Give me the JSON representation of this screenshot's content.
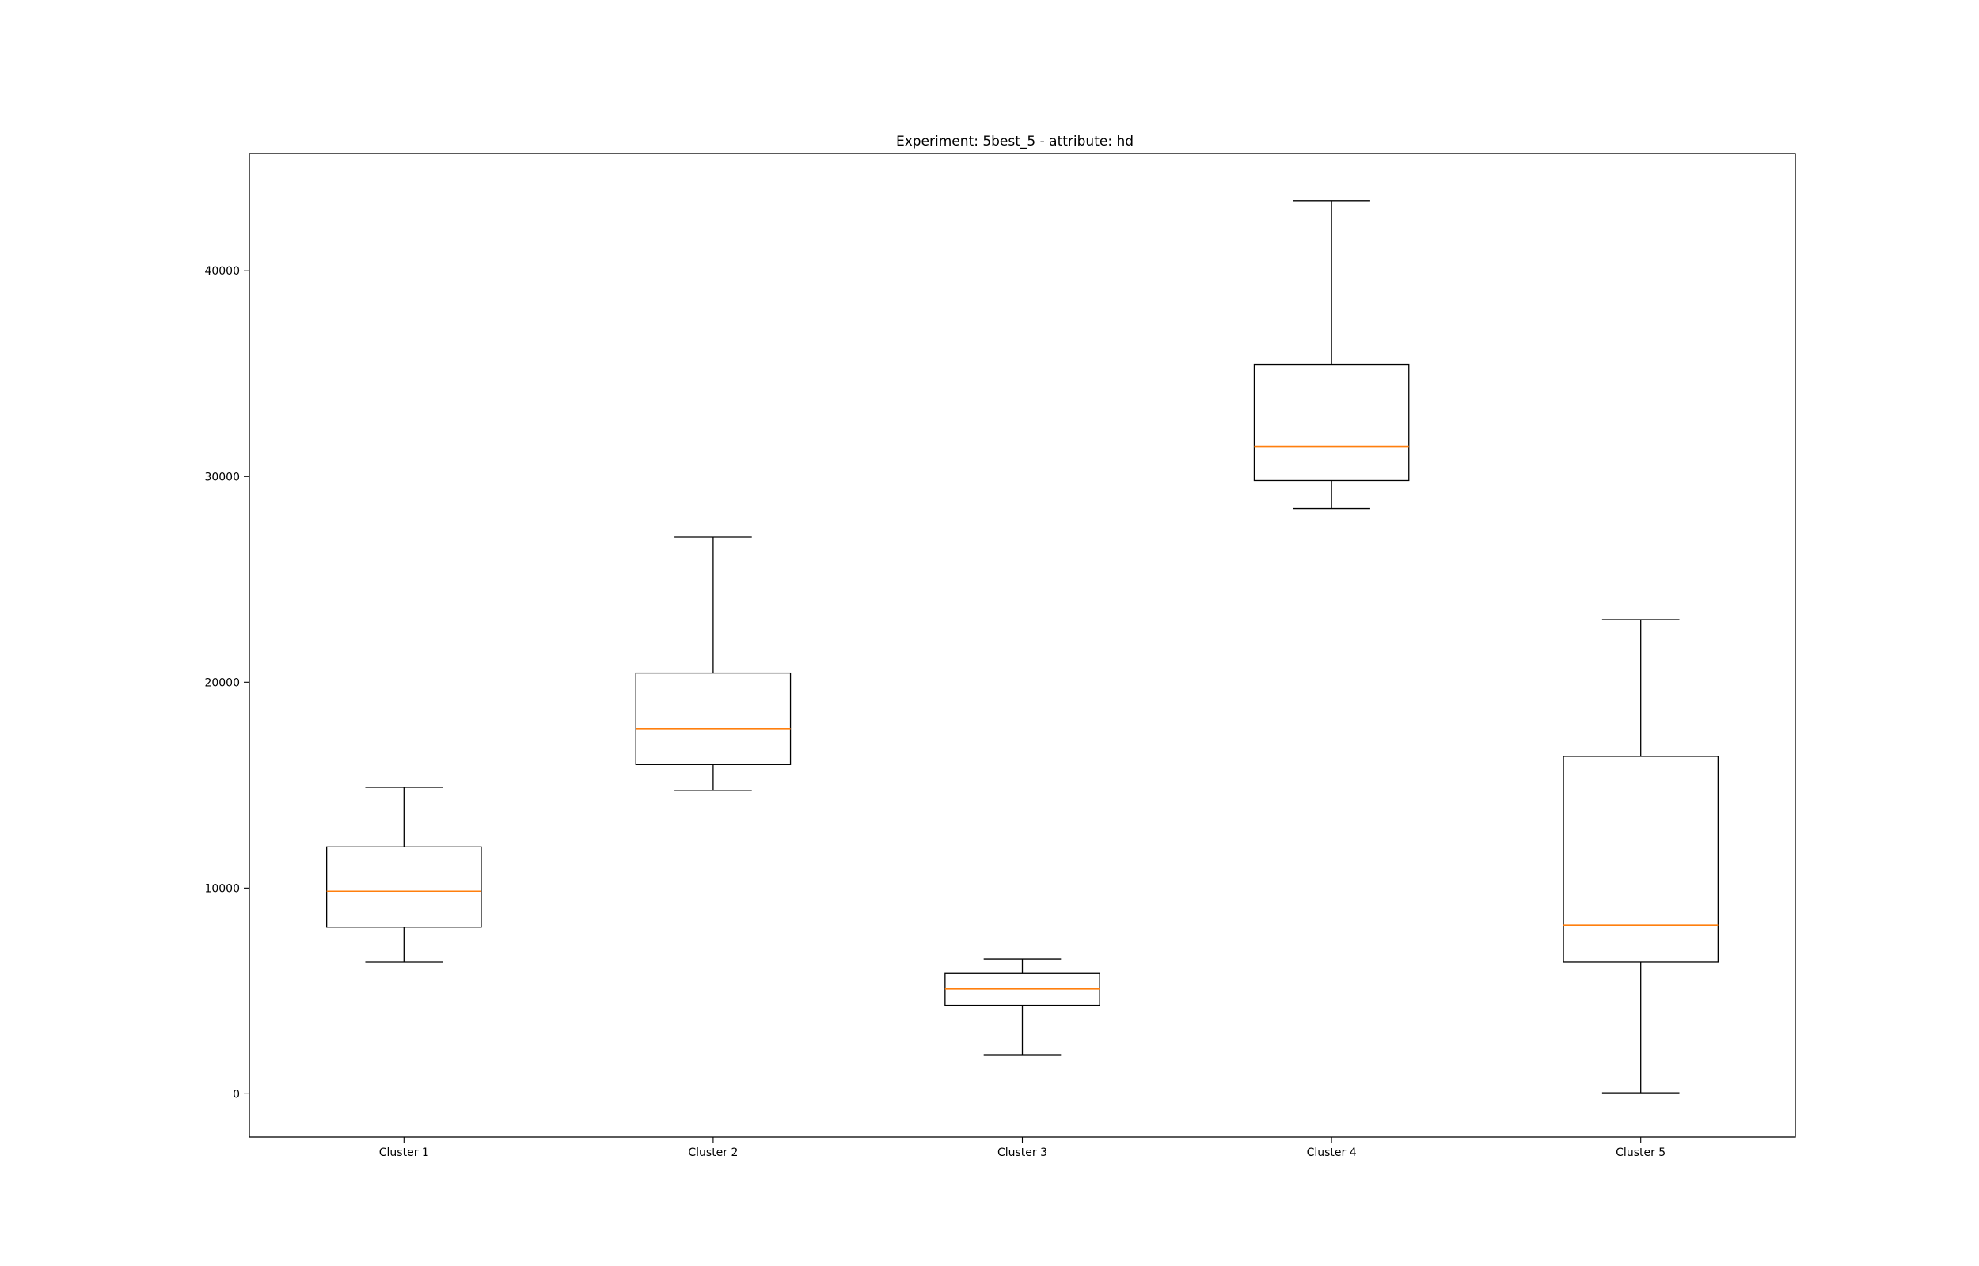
{
  "chart_data": {
    "type": "box",
    "title": "Experiment: 5best_5 - attribute: hd",
    "xlabel": "",
    "ylabel": "",
    "ylim": [
      -2100,
      45700
    ],
    "grid": false,
    "yticks": [
      0,
      10000,
      20000,
      30000,
      40000
    ],
    "ytick_labels": [
      "0",
      "10000",
      "20000",
      "30000",
      "40000"
    ],
    "categories": [
      "Cluster 1",
      "Cluster 2",
      "Cluster 3",
      "Cluster 4",
      "Cluster 5"
    ],
    "boxes": [
      {
        "category": "Cluster 1",
        "whisker_low": 6400,
        "q1": 8100,
        "median": 9850,
        "q3": 12000,
        "whisker_high": 14900
      },
      {
        "category": "Cluster 2",
        "whisker_low": 14750,
        "q1": 16000,
        "median": 17750,
        "q3": 20450,
        "whisker_high": 27050
      },
      {
        "category": "Cluster 3",
        "whisker_low": 1900,
        "q1": 4300,
        "median": 5100,
        "q3": 5850,
        "whisker_high": 6550
      },
      {
        "category": "Cluster 4",
        "whisker_low": 28450,
        "q1": 29800,
        "median": 31450,
        "q3": 35450,
        "whisker_high": 43400
      },
      {
        "category": "Cluster 5",
        "whisker_low": 50,
        "q1": 6400,
        "median": 8200,
        "q3": 16400,
        "whisker_high": 23050
      }
    ],
    "colors": {
      "box": "#000000",
      "median": "#ff7f0e",
      "axes": "#000000"
    }
  }
}
